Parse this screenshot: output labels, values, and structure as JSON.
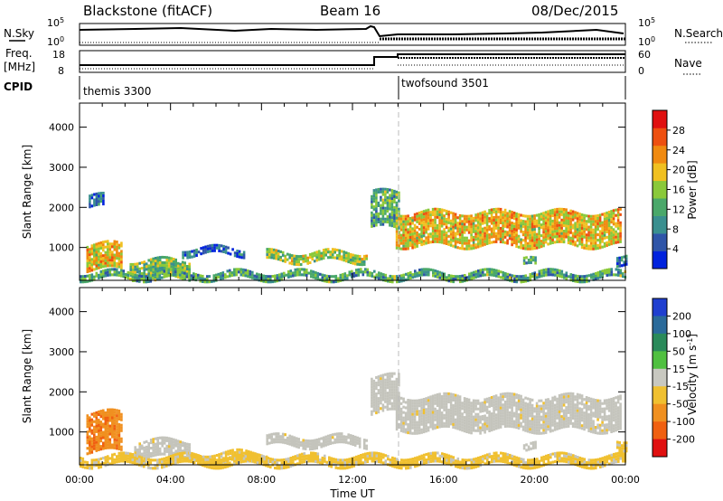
{
  "header": {
    "station": "Blackstone (fitACF)",
    "beam": "Beam 16",
    "date": "08/Dec/2015"
  },
  "status_panels": {
    "nsky_label": "N.Sky",
    "nsky_ticks": [
      "10^5",
      "10^0"
    ],
    "nsearch_label": "N.Search",
    "nsearch_ticks": [
      "10^5",
      "10^0"
    ],
    "freq_label": "Freq.",
    "freq_unit": "[MHz]",
    "freq_ticks": [
      "18",
      "8"
    ],
    "nave_label": "Nave",
    "nave_ticks": [
      "60",
      "0"
    ],
    "cpid_label": "CPID",
    "cpid_modes": [
      {
        "name": "themis 3300",
        "start_hour": 0
      },
      {
        "name": "twofsound 3501",
        "start_hour": 14
      }
    ]
  },
  "chart_data": [
    {
      "type": "heatmap",
      "name": "power",
      "ylabel": "Slant Range [km]",
      "xlabel": "",
      "ylim": [
        180,
        4600
      ],
      "yticks": [
        "1000",
        "2000",
        "3000",
        "4000"
      ],
      "ytick_values": [
        1000,
        2000,
        3000,
        4000
      ],
      "xlim": [
        0,
        24
      ],
      "colorbar": {
        "label": "Power [dB]",
        "ticks": [
          "4",
          "8",
          "12",
          "16",
          "20",
          "24",
          "28"
        ],
        "tick_values": [
          4,
          8,
          12,
          16,
          20,
          24,
          28
        ],
        "range": [
          0,
          32
        ],
        "colors": [
          "#0022dd",
          "#2f55a8",
          "#3a8f8f",
          "#4aa86a",
          "#8ac93a",
          "#f0c020",
          "#f08a10",
          "#ee5010",
          "#e01010"
        ]
      },
      "regions": [
        {
          "t0": 0.3,
          "t1": 1.8,
          "r0": 450,
          "r1": 1100,
          "level": 20
        },
        {
          "t0": 2.2,
          "t1": 4.8,
          "r0": 280,
          "r1": 700,
          "level": 14
        },
        {
          "t0": 4.5,
          "t1": 7.2,
          "r0": 800,
          "r1": 1000,
          "level": 6
        },
        {
          "t0": 8.2,
          "t1": 12.6,
          "r0": 660,
          "r1": 900,
          "level": 16
        },
        {
          "t0": 12.8,
          "t1": 14.0,
          "r0": 1500,
          "r1": 2400,
          "level": 12
        },
        {
          "t0": 13.9,
          "t1": 23.8,
          "r0": 1050,
          "r1": 1900,
          "level": 20
        },
        {
          "t0": 0.0,
          "t1": 24.0,
          "r0": 200,
          "r1": 400,
          "level": 12
        },
        {
          "t0": 0.4,
          "t1": 1.0,
          "r0": 2000,
          "r1": 2300,
          "level": 6
        },
        {
          "t0": 19.5,
          "t1": 20.0,
          "r0": 550,
          "r1": 700,
          "level": 12
        },
        {
          "t0": 23.6,
          "t1": 24.0,
          "r0": 600,
          "r1": 850,
          "level": 6
        }
      ]
    },
    {
      "type": "heatmap",
      "name": "velocity",
      "ylabel": "Slant Range [km]",
      "xlabel": "Time UT",
      "ylim": [
        180,
        4600
      ],
      "yticks": [
        "1000",
        "2000",
        "3000",
        "4000"
      ],
      "ytick_values": [
        1000,
        2000,
        3000,
        4000
      ],
      "xlim": [
        0,
        24
      ],
      "xticks": [
        "00:00",
        "04:00",
        "08:00",
        "12:00",
        "16:00",
        "20:00",
        "00:00"
      ],
      "xtick_values": [
        0,
        4,
        8,
        12,
        16,
        20,
        24
      ],
      "colorbar": {
        "label": "Velocity [m s^-1]",
        "ticks": [
          "200",
          "100",
          "50",
          "15",
          "-15",
          "-50",
          "-100",
          "-200"
        ],
        "colors": [
          "#1f3fd0",
          "#2a6a9a",
          "#2a8a5a",
          "#50c040",
          "#c8c8c0",
          "#f0c030",
          "#f09020",
          "#f06010",
          "#e01010"
        ]
      },
      "regions": [
        {
          "t0": 0.3,
          "t1": 1.8,
          "r0": 500,
          "r1": 1500,
          "level": "-50"
        },
        {
          "t0": 2.4,
          "t1": 4.8,
          "r0": 350,
          "r1": 800,
          "level": "ground"
        },
        {
          "t0": 8.2,
          "t1": 12.6,
          "r0": 660,
          "r1": 900,
          "level": "ground"
        },
        {
          "t0": 12.8,
          "t1": 14.0,
          "r0": 1500,
          "r1": 2400,
          "level": "ground"
        },
        {
          "t0": 13.9,
          "t1": 23.8,
          "r0": 1050,
          "r1": 1900,
          "level": "ground"
        },
        {
          "t0": 0.0,
          "t1": 24.0,
          "r0": 200,
          "r1": 420,
          "level": "-15"
        },
        {
          "t0": 4.8,
          "t1": 8.2,
          "r0": 250,
          "r1": 500,
          "level": "-15"
        },
        {
          "t0": 19.5,
          "t1": 20.0,
          "r0": 550,
          "r1": 700,
          "level": "ground"
        },
        {
          "t0": 23.6,
          "t1": 24.0,
          "r0": 600,
          "r1": 850,
          "level": "-15"
        }
      ]
    }
  ]
}
